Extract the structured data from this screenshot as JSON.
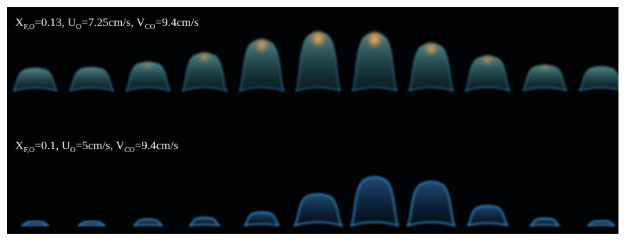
{
  "rows": [
    {
      "caption": {
        "x_main": "X",
        "x_sub": "F,O",
        "x_value": "=0.13, ",
        "u_main": "U",
        "u_sub": "O",
        "u_value": "=7.25cm/s, ",
        "v_main": "V",
        "v_sub": "CO",
        "v_value": "=9.4cm/s"
      },
      "flames": [
        {
          "height": 0.3,
          "soot": 0.0
        },
        {
          "height": 0.31,
          "soot": 0.0
        },
        {
          "height": 0.38,
          "soot": 0.05
        },
        {
          "height": 0.5,
          "soot": 0.35
        },
        {
          "height": 0.68,
          "soot": 0.7
        },
        {
          "height": 0.78,
          "soot": 0.9
        },
        {
          "height": 0.77,
          "soot": 0.95
        },
        {
          "height": 0.63,
          "soot": 0.65
        },
        {
          "height": 0.46,
          "soot": 0.35
        },
        {
          "height": 0.34,
          "soot": 0.05
        },
        {
          "height": 0.32,
          "soot": 0.0
        }
      ]
    },
    {
      "caption": {
        "x_main": "X",
        "x_sub": "F,O",
        "x_value": "=0.1, ",
        "u_main": "U",
        "u_sub": "O",
        "u_value": "=5cm/s, ",
        "v_main": "V",
        "v_sub": "CO",
        "v_value": "=9.4cm/s"
      },
      "flames": [
        {
          "height": 0.05,
          "soot": 0
        },
        {
          "height": 0.05,
          "soot": 0
        },
        {
          "height": 0.08,
          "soot": 0
        },
        {
          "height": 0.1,
          "soot": 0
        },
        {
          "height": 0.17,
          "soot": 0
        },
        {
          "height": 0.4,
          "soot": 0
        },
        {
          "height": 0.62,
          "soot": 0
        },
        {
          "height": 0.56,
          "soot": 0
        },
        {
          "height": 0.25,
          "soot": 0
        },
        {
          "height": 0.09,
          "soot": 0
        },
        {
          "height": 0.06,
          "soot": 0
        }
      ]
    }
  ],
  "colors": {
    "background": "#020304",
    "caption_text": "#f2f2f2",
    "flame_blue": "#3a9ad8",
    "flame_teal": "#4fa0a8",
    "soot_orange": "#f4a24a"
  }
}
